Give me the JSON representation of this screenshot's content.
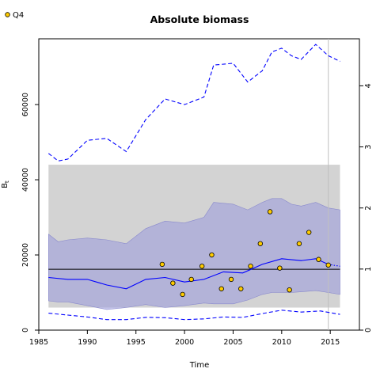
{
  "chart_data": {
    "type": "line",
    "title": "Absolute biomass",
    "xlabel": "Time",
    "ylabel": "B",
    "ylabel_subscript": "t",
    "xlim": [
      1985,
      2018
    ],
    "ylim": [
      0,
      77500
    ],
    "right_ylim": [
      0,
      4.77
    ],
    "x_ticks": [
      1985,
      1990,
      1995,
      2000,
      2005,
      2010,
      2015
    ],
    "y_ticks": [
      0,
      20000,
      40000,
      60000
    ],
    "right_ticks": [
      0,
      1,
      2,
      3,
      4
    ],
    "grid": false,
    "legend": {
      "position": "top-left",
      "entries": [
        "Q4"
      ]
    },
    "shaded_band": {
      "x": [
        1986.0,
        2016.0
      ],
      "y": [
        6000,
        44000
      ],
      "color": "#d3d3d3"
    },
    "reference_line": {
      "y": 16200,
      "x": [
        1986.0,
        2016.0
      ],
      "color": "#000000"
    },
    "vertical_line": {
      "x": 2014.8,
      "color": "#c0c0c0"
    },
    "series": [
      {
        "name": "median",
        "color": "#0000ff",
        "style": "solid",
        "x": [
          1986,
          1988,
          1990,
          1992,
          1994,
          1996,
          1998,
          2000,
          2002,
          2004,
          2006,
          2008,
          2010,
          2012,
          2013.5,
          2014.8
        ],
        "values": [
          14000,
          13500,
          13500,
          12000,
          11000,
          13500,
          14000,
          12800,
          13500,
          15500,
          15200,
          17500,
          19000,
          18500,
          19000,
          17500
        ]
      },
      {
        "name": "median-forecast",
        "color": "#0000ff",
        "style": "dotted",
        "x": [
          2014.8,
          2016
        ],
        "values": [
          17500,
          17000
        ]
      },
      {
        "name": "ci-upper",
        "color": "#0000ff",
        "style": "dashed",
        "x": [
          1986,
          1987,
          1988,
          1990,
          1992,
          1994,
          1996,
          1998,
          2000,
          2002,
          2003,
          2005,
          2006.5,
          2008,
          2009,
          2010,
          2011,
          2012,
          2013.5,
          2014.8,
          2016
        ],
        "values": [
          47000,
          45000,
          45500,
          50500,
          51000,
          47500,
          56000,
          61500,
          60000,
          62000,
          70500,
          71000,
          66000,
          69000,
          74000,
          75000,
          73000,
          72000,
          76000,
          73000,
          71500
        ]
      },
      {
        "name": "ci-lower",
        "color": "#0000ff",
        "style": "dashed",
        "x": [
          1986,
          1988,
          1990,
          1992,
          1994,
          1996,
          1998,
          2000,
          2002,
          2004,
          2006,
          2008,
          2010,
          2012,
          2014,
          2016
        ],
        "values": [
          4500,
          4000,
          3500,
          2800,
          2800,
          3400,
          3300,
          2800,
          3000,
          3500,
          3400,
          4400,
          5300,
          4800,
          5100,
          4200
        ]
      }
    ],
    "ci_band": {
      "color": "#9999dd",
      "x": [
        1986,
        1987,
        1988,
        1990,
        1992,
        1994,
        1996,
        1998,
        2000,
        2002,
        2003,
        2005,
        2006.5,
        2008,
        2009,
        2010,
        2011,
        2012,
        2013.5,
        2014.8,
        2016
      ],
      "upper": [
        25500,
        23500,
        24000,
        24500,
        24000,
        23000,
        27000,
        29000,
        28500,
        30000,
        34000,
        33500,
        32000,
        34000,
        35000,
        35000,
        33500,
        33000,
        34000,
        32500,
        32000
      ],
      "lower": [
        7800,
        7500,
        7500,
        6500,
        5500,
        6000,
        6800,
        6000,
        6500,
        7200,
        7000,
        7000,
        8000,
        9500,
        10000,
        10000,
        10000,
        10200,
        10500,
        10000,
        9500
      ]
    },
    "points": {
      "name": "Q4",
      "color": "#ffcc00",
      "x": [
        1997.7,
        1998.8,
        1999.8,
        2000.7,
        2001.8,
        2002.8,
        2003.8,
        2004.8,
        2005.8,
        2006.8,
        2007.8,
        2008.8,
        2009.8,
        2010.8,
        2011.8,
        2012.8,
        2013.8,
        2014.8
      ],
      "y": [
        17500,
        12500,
        9500,
        13500,
        17000,
        20000,
        11000,
        13500,
        11000,
        17000,
        23000,
        31500,
        16500,
        10700,
        23000,
        26000,
        18800,
        17300
      ]
    }
  }
}
